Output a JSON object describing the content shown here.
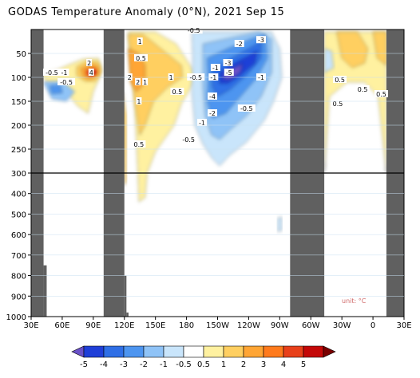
{
  "title": "GODAS Temperature Anomaly (0°N), 2021 Sep 15",
  "unit_label": "unit: °C",
  "chart_data": {
    "type": "heatmap",
    "title": "GODAS Temperature Anomaly (0°N), 2021 Sep 15",
    "xlabel": "",
    "ylabel": "",
    "x_ticks": [
      "30E",
      "60E",
      "90E",
      "120E",
      "150E",
      "180",
      "150W",
      "120W",
      "90W",
      "60W",
      "30W",
      "0",
      "30E"
    ],
    "x_tick_lons": [
      30,
      60,
      90,
      120,
      150,
      180,
      210,
      240,
      270,
      300,
      330,
      360,
      390
    ],
    "y_ticks_upper": [
      50,
      100,
      150,
      200,
      250,
      300
    ],
    "y_ticks_lower": [
      300,
      400,
      500,
      600,
      700,
      800,
      900,
      1000
    ],
    "y_split_depth": 300,
    "xlim": [
      30,
      390
    ],
    "ylim_depth_m": [
      0,
      1000
    ],
    "colorbar_levels": [
      "-5",
      "-4",
      "-3",
      "-2",
      "-1",
      "-0.5",
      "0.5",
      "1",
      "2",
      "3",
      "4",
      "5"
    ],
    "colorbar_colors": [
      "#6a51c8",
      "#1f3fd8",
      "#2f6fe6",
      "#4d95f0",
      "#8fc3f7",
      "#c9e5fb",
      "#ffffff",
      "#fff1a0",
      "#ffcf60",
      "#ffa534",
      "#ff7a1c",
      "#e8401a",
      "#c40808",
      "#7a0000"
    ],
    "land_masks": [
      {
        "from_lon": 30,
        "to_lon": 42,
        "depth_top": 0
      },
      {
        "from_lon": 100,
        "to_lon": 120,
        "depth_top": 0
      },
      {
        "from_lon": 280,
        "to_lon": 313,
        "depth_top": 0
      },
      {
        "from_lon": 373,
        "to_lon": 390,
        "depth_top": 0
      }
    ],
    "anomaly_features": [
      {
        "label": "warm core Indian Ocean",
        "lon": 90,
        "depth": 90,
        "value": 4
      },
      {
        "label": "warm west Pacific",
        "lon": 135,
        "depth": 90,
        "value": 2
      },
      {
        "label": "cold thermocline east-central Pacific",
        "lon": 215,
        "depth": 105,
        "value": -5
      },
      {
        "label": "warm Atlantic surface",
        "lon": 345,
        "depth": 60,
        "value": 1
      }
    ],
    "contour_labels": [
      {
        "text": "-0.5",
        "lon": 50,
        "depth": 90
      },
      {
        "text": "-1",
        "lon": 62,
        "depth": 90
      },
      {
        "text": "-0.5",
        "lon": 64,
        "depth": 110
      },
      {
        "text": "2",
        "lon": 86,
        "depth": 70
      },
      {
        "text": "4",
        "lon": 88,
        "depth": 90
      },
      {
        "text": "2",
        "lon": 125,
        "depth": 100
      },
      {
        "text": "2",
        "lon": 133,
        "depth": 110
      },
      {
        "text": "1",
        "lon": 135,
        "depth": 25
      },
      {
        "text": "0.5",
        "lon": 136,
        "depth": 60
      },
      {
        "text": "1",
        "lon": 140,
        "depth": 110
      },
      {
        "text": "1",
        "lon": 134,
        "depth": 150
      },
      {
        "text": "1",
        "lon": 165,
        "depth": 100
      },
      {
        "text": "0.5",
        "lon": 171,
        "depth": 130
      },
      {
        "text": "0.5",
        "lon": 134,
        "depth": 240
      },
      {
        "text": "-0.5",
        "lon": 189,
        "depth": 100
      },
      {
        "text": "-1",
        "lon": 208,
        "depth": 80
      },
      {
        "text": "-1",
        "lon": 206,
        "depth": 100
      },
      {
        "text": "-3",
        "lon": 220,
        "depth": 70
      },
      {
        "text": "-5",
        "lon": 221,
        "depth": 90
      },
      {
        "text": "-2",
        "lon": 231,
        "depth": 30
      },
      {
        "text": "-3",
        "lon": 252,
        "depth": 22
      },
      {
        "text": "-1",
        "lon": 252,
        "depth": 100
      },
      {
        "text": "-4",
        "lon": 205,
        "depth": 140
      },
      {
        "text": "-2",
        "lon": 205,
        "depth": 175
      },
      {
        "text": "-0.5",
        "lon": 238,
        "depth": 165
      },
      {
        "text": "-1",
        "lon": 195,
        "depth": 195
      },
      {
        "text": "-0.5",
        "lon": 182,
        "depth": 230
      },
      {
        "text": "0.5",
        "lon": 328,
        "depth": 105
      },
      {
        "text": "0.5",
        "lon": 350,
        "depth": 125
      },
      {
        "text": "0.5",
        "lon": 326,
        "depth": 155
      },
      {
        "text": "0.5",
        "lon": 368,
        "depth": 135
      },
      {
        "text": "-0.5",
        "lon": 187,
        "depth": 2
      }
    ]
  }
}
